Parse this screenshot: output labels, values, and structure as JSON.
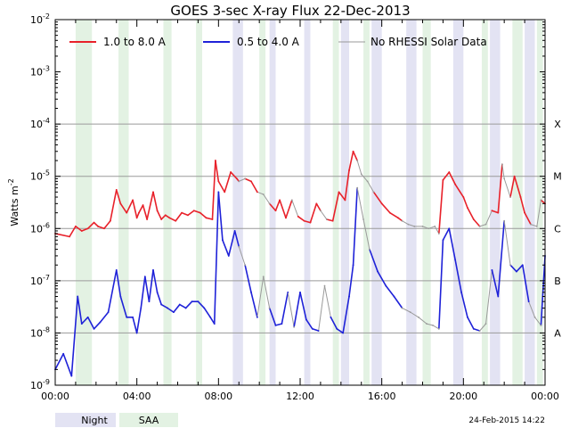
{
  "chart_data": {
    "type": "line",
    "title": "GOES 3-sec X-ray Flux   22-Dec-2013",
    "ylabel": "Watts m",
    "ylabel_sup": "-2",
    "yscale": "log",
    "ylim_exp": [
      -9,
      -2
    ],
    "y_ticks": [
      {
        "base": "10",
        "exp": "-2"
      },
      {
        "base": "10",
        "exp": "-3"
      },
      {
        "base": "10",
        "exp": "-4"
      },
      {
        "base": "10",
        "exp": "-5"
      },
      {
        "base": "10",
        "exp": "-6"
      },
      {
        "base": "10",
        "exp": "-7"
      },
      {
        "base": "10",
        "exp": "-8"
      },
      {
        "base": "10",
        "exp": "-9"
      }
    ],
    "flare_classes": [
      {
        "label": "X",
        "exp": -4
      },
      {
        "label": "M",
        "exp": -5
      },
      {
        "label": "C",
        "exp": -6
      },
      {
        "label": "B",
        "exp": -7
      },
      {
        "label": "A",
        "exp": -8
      }
    ],
    "x_range_hours": [
      0,
      24
    ],
    "x_tick_labels": [
      "00:00",
      "04:00",
      "08:00",
      "12:00",
      "16:00",
      "20:00",
      "00:00"
    ],
    "x_tick_hours": [
      0,
      4,
      8,
      12,
      16,
      20,
      24
    ],
    "night_intervals_hours": [
      [
        8.7,
        9.2
      ],
      [
        10.5,
        10.8
      ],
      [
        12.2,
        12.5
      ],
      [
        14.0,
        14.4
      ],
      [
        15.5,
        16.0
      ],
      [
        17.2,
        17.7
      ],
      [
        19.5,
        20.0
      ],
      [
        21.3,
        21.8
      ],
      [
        23.0,
        23.5
      ]
    ],
    "saa_intervals_hours": [
      [
        1.0,
        1.8
      ],
      [
        3.1,
        3.6
      ],
      [
        5.3,
        5.7
      ],
      [
        6.9,
        7.2
      ],
      [
        10.0,
        10.3
      ],
      [
        13.6,
        13.9
      ],
      [
        15.1,
        15.4
      ],
      [
        18.0,
        18.4
      ],
      [
        20.9,
        21.2
      ],
      [
        22.4,
        22.9
      ],
      [
        23.6,
        23.9
      ]
    ],
    "legend": [
      {
        "label": "1.0 to 8.0 A",
        "color": "#e8212a"
      },
      {
        "label": "0.5 to 4.0 A",
        "color": "#1f22d8"
      },
      {
        "label": "No RHESSI Solar Data",
        "color": "#9a9a9a"
      }
    ],
    "gaps_hours": [
      [
        9.0,
        9.3
      ],
      [
        10.0,
        10.5
      ],
      [
        11.5,
        11.8
      ],
      [
        13.0,
        13.4
      ],
      [
        14.8,
        15.6
      ],
      [
        17.0,
        18.8
      ],
      [
        20.8,
        21.3
      ],
      [
        21.9,
        22.3
      ],
      [
        23.3,
        23.8
      ]
    ],
    "series": [
      {
        "name": "1.0 to 8.0 A",
        "color": "#e8212a",
        "x": [
          0.0,
          0.7,
          1.0,
          1.3,
          1.6,
          1.9,
          2.1,
          2.4,
          2.7,
          3.0,
          3.2,
          3.5,
          3.8,
          4.0,
          4.1,
          4.3,
          4.5,
          4.8,
          5.0,
          5.2,
          5.4,
          5.6,
          5.9,
          6.2,
          6.5,
          6.8,
          7.1,
          7.4,
          7.7,
          7.85,
          8.0,
          8.3,
          8.6,
          8.9,
          9.0,
          9.3,
          9.6,
          9.9,
          10.2,
          10.5,
          10.8,
          11.0,
          11.3,
          11.6,
          11.9,
          12.2,
          12.5,
          12.8,
          13.0,
          13.3,
          13.6,
          13.9,
          14.2,
          14.4,
          14.6,
          14.8,
          15.0,
          15.3,
          15.6,
          16.0,
          16.4,
          16.8,
          17.0,
          17.3,
          17.6,
          18.0,
          18.3,
          18.6,
          18.8,
          19.0,
          19.3,
          19.6,
          20.0,
          20.2,
          20.5,
          20.8,
          21.1,
          21.4,
          21.7,
          21.9,
          22.0,
          22.3,
          22.5,
          22.8,
          23.0,
          23.3,
          23.6,
          23.8,
          24.0
        ],
        "values": [
          8e-07,
          7e-07,
          1.1e-06,
          9e-07,
          1e-06,
          1.3e-06,
          1.1e-06,
          1e-06,
          1.4e-06,
          5.5e-06,
          3e-06,
          2e-06,
          3.5e-06,
          1.6e-06,
          2e-06,
          2.8e-06,
          1.5e-06,
          5e-06,
          2.2e-06,
          1.5e-06,
          1.8e-06,
          1.6e-06,
          1.4e-06,
          2e-06,
          1.8e-06,
          2.2e-06,
          2e-06,
          1.6e-06,
          1.5e-06,
          2e-05,
          8e-06,
          5e-06,
          1.2e-05,
          9e-06,
          8e-06,
          9e-06,
          8e-06,
          5e-06,
          4.5e-06,
          3e-06,
          2.2e-06,
          3.5e-06,
          1.6e-06,
          3.5e-06,
          1.7e-06,
          1.4e-06,
          1.3e-06,
          3e-06,
          2.2e-06,
          1.5e-06,
          1.4e-06,
          5e-06,
          3.5e-06,
          1.3e-05,
          3e-05,
          2e-05,
          1.1e-05,
          8e-06,
          5e-06,
          3e-06,
          2e-06,
          1.6e-06,
          1.4e-06,
          1.2e-06,
          1.1e-06,
          1.1e-06,
          1e-06,
          1.1e-06,
          8e-07,
          8.5e-06,
          1.2e-05,
          7e-06,
          4e-06,
          2.5e-06,
          1.5e-06,
          1.1e-06,
          1.2e-06,
          2.2e-06,
          2e-06,
          1.7e-05,
          9e-06,
          4e-06,
          1e-05,
          4e-06,
          2e-06,
          1.2e-06,
          1.1e-06,
          3.5e-06,
          3e-06
        ]
      },
      {
        "name": "0.5 to 4.0 A",
        "color": "#1f22d8",
        "x": [
          0.0,
          0.4,
          0.8,
          1.1,
          1.3,
          1.6,
          1.9,
          2.2,
          2.6,
          3.0,
          3.2,
          3.5,
          3.8,
          4.0,
          4.2,
          4.4,
          4.6,
          4.8,
          5.0,
          5.2,
          5.5,
          5.8,
          6.1,
          6.4,
          6.7,
          7.0,
          7.3,
          7.6,
          7.8,
          8.0,
          8.2,
          8.5,
          8.8,
          9.0,
          9.3,
          9.6,
          9.9,
          10.2,
          10.5,
          10.8,
          11.1,
          11.4,
          11.7,
          12.0,
          12.3,
          12.6,
          12.9,
          13.2,
          13.5,
          13.8,
          14.1,
          14.4,
          14.6,
          14.8,
          15.1,
          15.4,
          15.8,
          16.2,
          16.6,
          17.0,
          17.4,
          17.8,
          18.2,
          18.5,
          18.8,
          19.0,
          19.3,
          19.6,
          19.9,
          20.2,
          20.5,
          20.8,
          21.1,
          21.4,
          21.7,
          22.0,
          22.3,
          22.6,
          22.9,
          23.2,
          23.5,
          23.8,
          24.0
        ],
        "values": [
          2e-09,
          4e-09,
          1.5e-09,
          5e-08,
          1.5e-08,
          2e-08,
          1.2e-08,
          1.6e-08,
          2.5e-08,
          1.6e-07,
          5e-08,
          2e-08,
          2e-08,
          1e-08,
          3e-08,
          1.2e-07,
          4e-08,
          1.6e-07,
          6e-08,
          3.5e-08,
          3e-08,
          2.5e-08,
          3.5e-08,
          3e-08,
          4e-08,
          4e-08,
          3e-08,
          2e-08,
          1.5e-08,
          5e-06,
          6e-07,
          3e-07,
          9e-07,
          4.5e-07,
          2e-07,
          6e-08,
          2e-08,
          1.2e-07,
          3e-08,
          1.4e-08,
          1.5e-08,
          6e-08,
          1.3e-08,
          6e-08,
          1.8e-08,
          1.2e-08,
          1.1e-08,
          8e-08,
          2e-08,
          1.2e-08,
          1e-08,
          5e-08,
          2e-07,
          6e-06,
          1.5e-06,
          4e-07,
          1.5e-07,
          8e-08,
          5e-08,
          3e-08,
          2.5e-08,
          2e-08,
          1.5e-08,
          1.4e-08,
          1.2e-08,
          6e-07,
          1e-06,
          2.5e-07,
          6e-08,
          2e-08,
          1.2e-08,
          1.1e-08,
          1.5e-08,
          1.6e-07,
          5e-08,
          1.4e-06,
          2e-07,
          1.5e-07,
          2e-07,
          4e-08,
          2e-08,
          1.4e-08,
          3e-07
        ]
      }
    ]
  },
  "legend_bottom": {
    "night_label": "Night",
    "night_color": "#e3e3f3",
    "saa_label": "SAA",
    "saa_color": "#e3f2e3"
  },
  "footer_timestamp": "24-Feb-2015 14:22"
}
